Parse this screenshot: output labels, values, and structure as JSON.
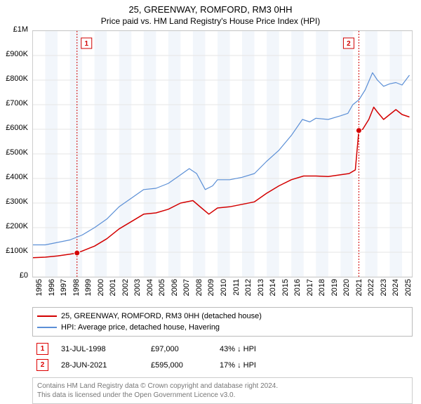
{
  "title": "25, GREENWAY, ROMFORD, RM3 0HH",
  "subtitle": "Price paid vs. HM Land Registry's House Price Index (HPI)",
  "chart": {
    "background_color": "#ffffff",
    "plot_border_color": "#cccccc",
    "grid_color": "#e6e6e6",
    "band_color": "#f2f6fb",
    "marker_line_color": "#d00000",
    "y": {
      "min": 0,
      "max": 1000000,
      "tick_step": 100000,
      "labels": [
        "£0",
        "£100K",
        "£200K",
        "£300K",
        "£400K",
        "£500K",
        "£600K",
        "£700K",
        "£800K",
        "£900K",
        "£1M"
      ]
    },
    "x": {
      "min": 1995,
      "max": 2025.8,
      "ticks": [
        1995,
        1996,
        1997,
        1998,
        1999,
        2000,
        2001,
        2002,
        2003,
        2004,
        2005,
        2006,
        2007,
        2008,
        2009,
        2010,
        2011,
        2012,
        2013,
        2014,
        2015,
        2016,
        2017,
        2018,
        2019,
        2020,
        2021,
        2022,
        2023,
        2024,
        2025
      ],
      "labels": [
        "1995",
        "1996",
        "1997",
        "1998",
        "1999",
        "2000",
        "2001",
        "2002",
        "2003",
        "2004",
        "2005",
        "2006",
        "2007",
        "2008",
        "2009",
        "2010",
        "2011",
        "2012",
        "2013",
        "2014",
        "2015",
        "2016",
        "2017",
        "2018",
        "2019",
        "2020",
        "2021",
        "2022",
        "2023",
        "2024",
        "2025"
      ]
    },
    "bands": [
      {
        "from": 1996,
        "to": 1997
      },
      {
        "from": 1998,
        "to": 1999
      },
      {
        "from": 2000,
        "to": 2001
      },
      {
        "from": 2002,
        "to": 2003
      },
      {
        "from": 2004,
        "to": 2005
      },
      {
        "from": 2006,
        "to": 2007
      },
      {
        "from": 2008,
        "to": 2009
      },
      {
        "from": 2010,
        "to": 2011
      },
      {
        "from": 2012,
        "to": 2013
      },
      {
        "from": 2014,
        "to": 2015
      },
      {
        "from": 2016,
        "to": 2017
      },
      {
        "from": 2018,
        "to": 2019
      },
      {
        "from": 2020,
        "to": 2021
      },
      {
        "from": 2022,
        "to": 2023
      },
      {
        "from": 2024,
        "to": 2025
      }
    ],
    "series": [
      {
        "name": "25, GREENWAY, ROMFORD, RM3 0HH (detached house)",
        "color": "#d30000",
        "line_width": 1.5,
        "points": [
          [
            1995.0,
            78000
          ],
          [
            1996.0,
            80000
          ],
          [
            1997.0,
            85000
          ],
          [
            1998.0,
            92000
          ],
          [
            1998.58,
            97000
          ],
          [
            1999.0,
            105000
          ],
          [
            2000.0,
            125000
          ],
          [
            2001.0,
            155000
          ],
          [
            2002.0,
            195000
          ],
          [
            2003.0,
            225000
          ],
          [
            2004.0,
            255000
          ],
          [
            2005.0,
            260000
          ],
          [
            2006.0,
            275000
          ],
          [
            2007.0,
            300000
          ],
          [
            2008.0,
            310000
          ],
          [
            2008.7,
            280000
          ],
          [
            2009.3,
            255000
          ],
          [
            2010.0,
            280000
          ],
          [
            2011.0,
            285000
          ],
          [
            2012.0,
            295000
          ],
          [
            2013.0,
            305000
          ],
          [
            2014.0,
            340000
          ],
          [
            2015.0,
            370000
          ],
          [
            2016.0,
            395000
          ],
          [
            2017.0,
            410000
          ],
          [
            2018.0,
            410000
          ],
          [
            2019.0,
            408000
          ],
          [
            2020.0,
            415000
          ],
          [
            2020.7,
            420000
          ],
          [
            2021.2,
            435000
          ],
          [
            2021.49,
            595000
          ],
          [
            2021.8,
            600000
          ],
          [
            2022.3,
            640000
          ],
          [
            2022.7,
            690000
          ],
          [
            2023.0,
            670000
          ],
          [
            2023.5,
            640000
          ],
          [
            2024.0,
            660000
          ],
          [
            2024.5,
            680000
          ],
          [
            2025.0,
            660000
          ],
          [
            2025.6,
            650000
          ]
        ]
      },
      {
        "name": "HPI: Average price, detached house, Havering",
        "color": "#5b8fd6",
        "line_width": 1.2,
        "points": [
          [
            1995.0,
            130000
          ],
          [
            1996.0,
            130000
          ],
          [
            1997.0,
            140000
          ],
          [
            1998.0,
            150000
          ],
          [
            1999.0,
            170000
          ],
          [
            2000.0,
            200000
          ],
          [
            2001.0,
            235000
          ],
          [
            2002.0,
            285000
          ],
          [
            2003.0,
            320000
          ],
          [
            2004.0,
            355000
          ],
          [
            2005.0,
            360000
          ],
          [
            2006.0,
            380000
          ],
          [
            2007.0,
            415000
          ],
          [
            2007.7,
            440000
          ],
          [
            2008.3,
            420000
          ],
          [
            2009.0,
            355000
          ],
          [
            2009.6,
            370000
          ],
          [
            2010.0,
            395000
          ],
          [
            2011.0,
            395000
          ],
          [
            2012.0,
            405000
          ],
          [
            2013.0,
            420000
          ],
          [
            2014.0,
            470000
          ],
          [
            2015.0,
            515000
          ],
          [
            2016.0,
            575000
          ],
          [
            2016.9,
            640000
          ],
          [
            2017.5,
            630000
          ],
          [
            2018.0,
            645000
          ],
          [
            2019.0,
            640000
          ],
          [
            2020.0,
            655000
          ],
          [
            2020.6,
            665000
          ],
          [
            2021.0,
            700000
          ],
          [
            2021.5,
            720000
          ],
          [
            2022.0,
            760000
          ],
          [
            2022.6,
            830000
          ],
          [
            2023.0,
            800000
          ],
          [
            2023.5,
            775000
          ],
          [
            2024.0,
            785000
          ],
          [
            2024.5,
            790000
          ],
          [
            2025.0,
            780000
          ],
          [
            2025.6,
            820000
          ]
        ]
      }
    ],
    "sale_markers": [
      {
        "label": "1",
        "x": 1998.58,
        "y": 97000
      },
      {
        "label": "2",
        "x": 2021.49,
        "y": 595000
      }
    ]
  },
  "legend": {
    "items": [
      {
        "label": "25, GREENWAY, ROMFORD, RM3 0HH (detached house)",
        "color": "#d30000"
      },
      {
        "label": "HPI: Average price, detached house, Havering",
        "color": "#5b8fd6"
      }
    ]
  },
  "sales_table": [
    {
      "marker": "1",
      "date": "31-JUL-1998",
      "price": "£97,000",
      "pct": "43% ↓ HPI"
    },
    {
      "marker": "2",
      "date": "28-JUN-2021",
      "price": "£595,000",
      "pct": "17% ↓ HPI"
    }
  ],
  "attribution": {
    "line1": "Contains HM Land Registry data © Crown copyright and database right 2024.",
    "line2": "This data is licensed under the Open Government Licence v3.0."
  }
}
